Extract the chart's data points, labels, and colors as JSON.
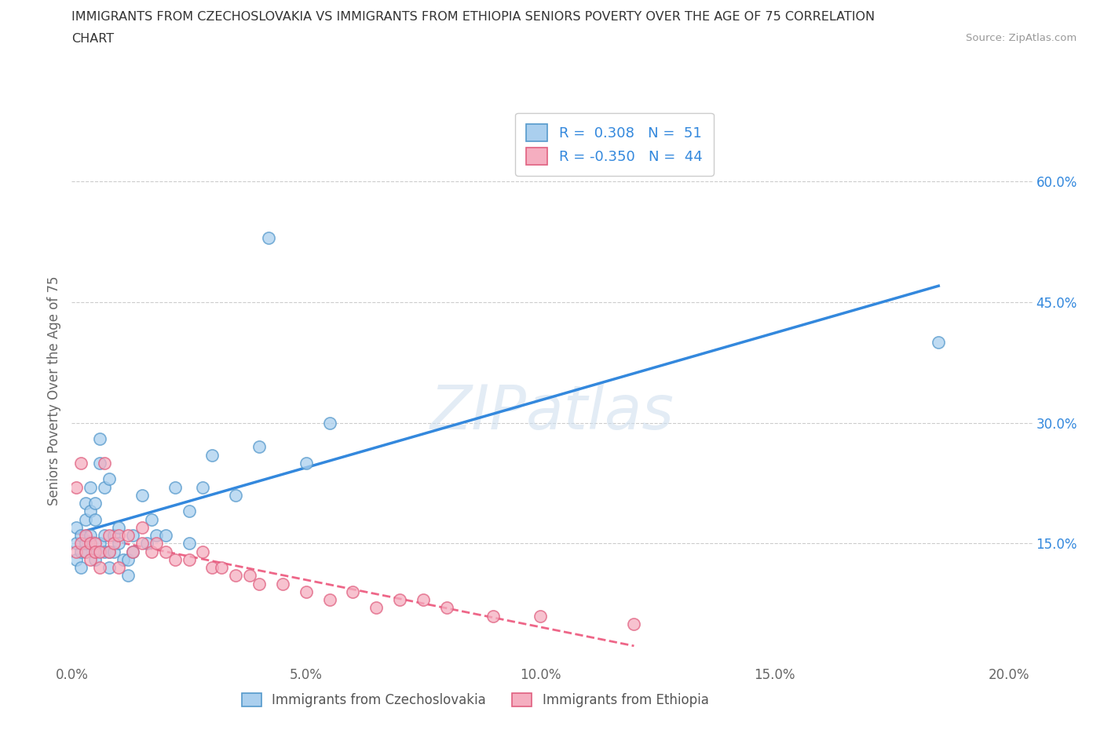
{
  "title_line1": "IMMIGRANTS FROM CZECHOSLOVAKIA VS IMMIGRANTS FROM ETHIOPIA SENIORS POVERTY OVER THE AGE OF 75 CORRELATION",
  "title_line2": "CHART",
  "source": "Source: ZipAtlas.com",
  "ylabel": "Seniors Poverty Over the Age of 75",
  "xlim": [
    0.0,
    0.205
  ],
  "ylim": [
    0.0,
    0.68
  ],
  "xtick_labels": [
    "0.0%",
    "5.0%",
    "10.0%",
    "15.0%",
    "20.0%"
  ],
  "xtick_vals": [
    0.0,
    0.05,
    0.1,
    0.15,
    0.2
  ],
  "ytick_labels": [
    "15.0%",
    "30.0%",
    "45.0%",
    "60.0%"
  ],
  "ytick_vals": [
    0.15,
    0.3,
    0.45,
    0.6
  ],
  "color_czech": "#aacfee",
  "edge_czech": "#5599cc",
  "color_ethiopia": "#f5aec0",
  "edge_ethiopia": "#e06080",
  "R_czech": "0.308",
  "N_czech": "51",
  "R_ethiopia": "-0.350",
  "N_ethiopia": "44",
  "trend_czech_color": "#3388dd",
  "trend_ethiopia_color": "#ee6688",
  "watermark": "ZIPatlas",
  "czech_x": [
    0.001,
    0.001,
    0.001,
    0.002,
    0.002,
    0.002,
    0.003,
    0.003,
    0.003,
    0.003,
    0.004,
    0.004,
    0.004,
    0.005,
    0.005,
    0.005,
    0.005,
    0.006,
    0.006,
    0.006,
    0.007,
    0.007,
    0.007,
    0.008,
    0.008,
    0.008,
    0.009,
    0.009,
    0.01,
    0.01,
    0.011,
    0.012,
    0.012,
    0.013,
    0.013,
    0.015,
    0.016,
    0.017,
    0.018,
    0.02,
    0.022,
    0.025,
    0.025,
    0.028,
    0.03,
    0.035,
    0.04,
    0.042,
    0.05,
    0.055,
    0.185
  ],
  "czech_y": [
    0.15,
    0.13,
    0.17,
    0.12,
    0.16,
    0.14,
    0.14,
    0.18,
    0.15,
    0.2,
    0.16,
    0.22,
    0.19,
    0.14,
    0.13,
    0.2,
    0.18,
    0.25,
    0.28,
    0.15,
    0.22,
    0.14,
    0.16,
    0.14,
    0.12,
    0.23,
    0.14,
    0.16,
    0.15,
    0.17,
    0.13,
    0.13,
    0.11,
    0.14,
    0.16,
    0.21,
    0.15,
    0.18,
    0.16,
    0.16,
    0.22,
    0.15,
    0.19,
    0.22,
    0.26,
    0.21,
    0.27,
    0.53,
    0.25,
    0.3,
    0.4
  ],
  "ethiopia_x": [
    0.001,
    0.001,
    0.002,
    0.002,
    0.003,
    0.003,
    0.004,
    0.004,
    0.005,
    0.005,
    0.006,
    0.006,
    0.007,
    0.008,
    0.008,
    0.009,
    0.01,
    0.01,
    0.012,
    0.013,
    0.015,
    0.015,
    0.017,
    0.018,
    0.02,
    0.022,
    0.025,
    0.028,
    0.03,
    0.032,
    0.035,
    0.038,
    0.04,
    0.045,
    0.05,
    0.055,
    0.06,
    0.065,
    0.07,
    0.075,
    0.08,
    0.09,
    0.1,
    0.12
  ],
  "ethiopia_y": [
    0.14,
    0.22,
    0.25,
    0.15,
    0.14,
    0.16,
    0.13,
    0.15,
    0.15,
    0.14,
    0.14,
    0.12,
    0.25,
    0.16,
    0.14,
    0.15,
    0.16,
    0.12,
    0.16,
    0.14,
    0.15,
    0.17,
    0.14,
    0.15,
    0.14,
    0.13,
    0.13,
    0.14,
    0.12,
    0.12,
    0.11,
    0.11,
    0.1,
    0.1,
    0.09,
    0.08,
    0.09,
    0.07,
    0.08,
    0.08,
    0.07,
    0.06,
    0.06,
    0.05
  ]
}
